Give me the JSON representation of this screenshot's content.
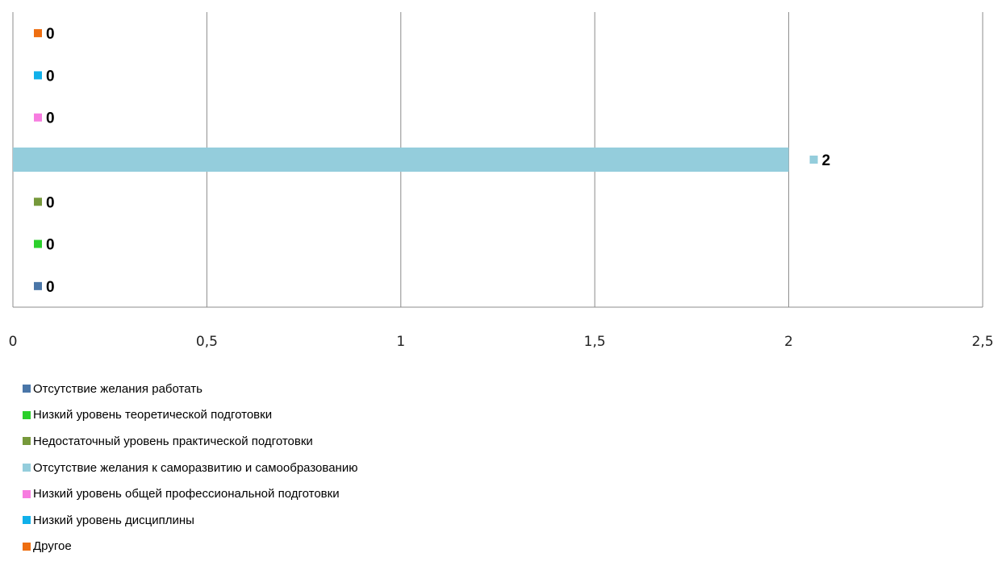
{
  "chart_data": {
    "type": "bar",
    "orientation": "horizontal",
    "xlim": [
      0,
      2.5
    ],
    "x_ticks": [
      "0",
      "0,5",
      "1",
      "1,5",
      "2",
      "2,5"
    ],
    "grid": "vertical",
    "legend_position": "bottom-left",
    "series": [
      {
        "name": "Отсутствие желания работать",
        "value": 0,
        "label": "0",
        "color": "#4a76a8"
      },
      {
        "name": "Низкий уровень теоретической подготовки",
        "value": 0,
        "label": "0",
        "color": "#2bd02b"
      },
      {
        "name": "Недостаточный уровень практической подготовки",
        "value": 0,
        "label": "0",
        "color": "#76993b"
      },
      {
        "name": "Отсутствие желания к саморазвитию и самообразованию",
        "value": 2,
        "label": "2",
        "color": "#94cddc"
      },
      {
        "name": "Низкий уровень общей профессиональной подготовки",
        "value": 0,
        "label": "0",
        "color": "#f77ce0"
      },
      {
        "name": "Низкий уровень дисциплины",
        "value": 0,
        "label": "0",
        "color": "#10b0ea"
      },
      {
        "name": "Другое",
        "value": 0,
        "label": "0",
        "color": "#ee6e10"
      }
    ]
  }
}
